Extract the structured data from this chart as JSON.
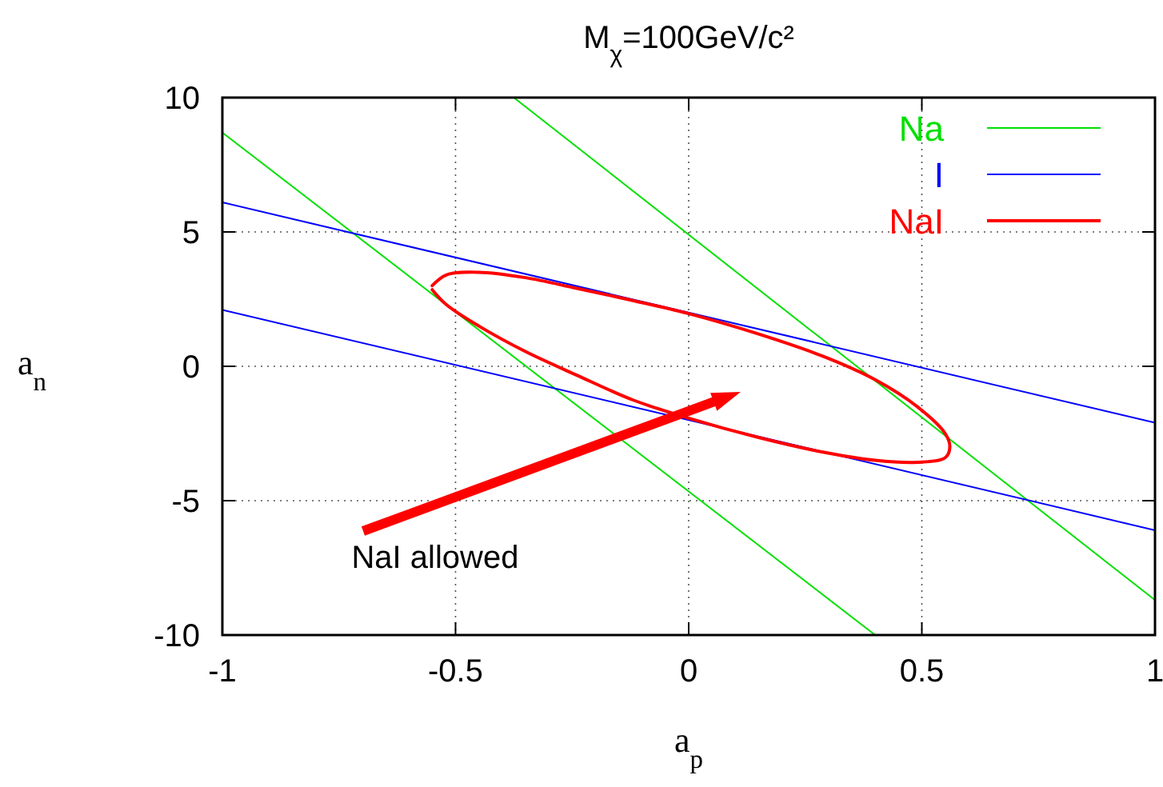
{
  "chart_data": {
    "type": "line",
    "title": "M$_{χ}$=100GeV/c²",
    "xlabel": "a$_{p}$",
    "ylabel": "a$_{n}$",
    "xlim": [
      -1,
      1
    ],
    "ylim": [
      -10,
      10
    ],
    "xticks": [
      -1,
      -0.5,
      0,
      0.5,
      1
    ],
    "yticks": [
      -10,
      -5,
      0,
      5,
      10
    ],
    "grid": true,
    "legend": "top right",
    "marker": "none",
    "line_style": "solid",
    "series": [
      {
        "name": "Na",
        "color": "#00e000",
        "x": [
          -0.375,
          1
        ],
        "values": [
          10,
          -8.7
        ]
      },
      {
        "color": "#00e000",
        "x": [
          -1,
          0.4
        ],
        "values": [
          8.7,
          -10
        ]
      },
      {
        "name": "I",
        "color": "#0000ff",
        "x": [
          -1,
          1
        ],
        "values": [
          6.1,
          -2.1
        ]
      },
      {
        "color": "#0000ff",
        "x": [
          -1,
          1
        ],
        "values": [
          2.1,
          -6.1
        ]
      },
      {
        "name": "NaI",
        "color": "#ff0000",
        "x": [
          -0.55,
          -0.52,
          -0.45,
          -0.35,
          -0.24,
          -0.12,
          0,
          0.15,
          0.29,
          0.4,
          0.49,
          0.55,
          0.56,
          0.55,
          0.49,
          0.4,
          0.29,
          0.15,
          0,
          -0.12,
          -0.24,
          -0.35,
          -0.45,
          -0.52,
          -0.55
        ],
        "values": [
          3.0,
          3.4,
          3.5,
          3.3,
          2.9,
          2.45,
          1.96,
          1.2,
          0.36,
          -0.5,
          -1.5,
          -2.5,
          -3.0,
          -3.4,
          -3.57,
          -3.5,
          -3.2,
          -2.65,
          -1.93,
          -1.25,
          -0.33,
          0.55,
          1.5,
          2.3,
          2.85
        ]
      }
    ],
    "annotations": [
      "NaI allowed"
    ]
  }
}
